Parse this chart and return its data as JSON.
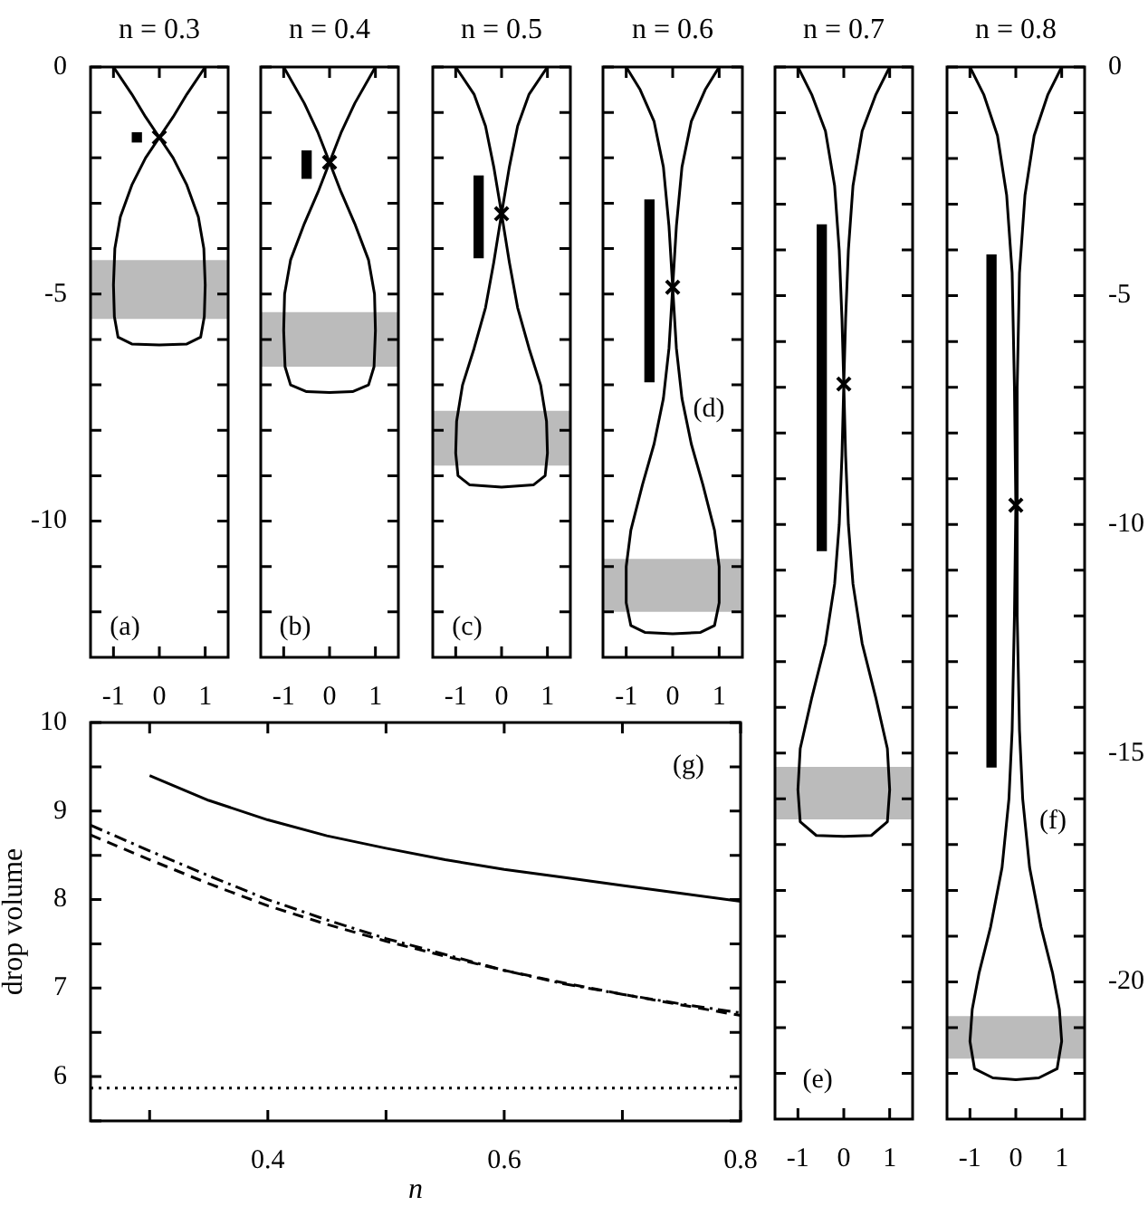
{
  "chart_data": [
    {
      "type": "line",
      "title": "n = 0.3",
      "xlim": [
        -1.5,
        1.5
      ],
      "xticks": [
        -1,
        0,
        1
      ],
      "ylim": [
        -13,
        0
      ],
      "yticks": [
        0,
        {
          "value": -1,
          "label": null
        },
        {
          "value": -2,
          "label": null
        },
        {
          "value": -3,
          "label": null
        },
        {
          "value": -4,
          "label": null
        },
        -5,
        {
          "value": -6,
          "label": null
        },
        {
          "value": -7,
          "label": null
        },
        {
          "value": -8,
          "label": null
        },
        {
          "value": -9,
          "label": null
        },
        -10,
        {
          "value": -11,
          "label": null
        },
        {
          "value": -12,
          "label": null
        }
      ],
      "series": [
        {
          "type": "line",
          "color": "#000000",
          "x": [
            -1,
            -0.6,
            -0.3,
            0,
            0.3,
            0.6,
            0.85,
            0.97,
            1.0,
            0.98,
            0.9,
            0.6,
            0,
            -0.6,
            -0.9,
            -0.98,
            -1.0,
            -0.97,
            -0.85,
            -0.6,
            -0.3,
            0,
            0.3,
            0.6,
            1
          ],
          "values": [
            0,
            -0.6,
            -1.1,
            -1.55,
            -2.0,
            -2.6,
            -3.3,
            -4.0,
            -4.8,
            -5.5,
            -5.95,
            -6.1,
            -6.12,
            -6.1,
            -5.95,
            -5.5,
            -4.8,
            -4.0,
            -3.3,
            -2.6,
            -2.0,
            -1.55,
            -1.1,
            -0.6,
            0
          ]
        },
        {
          "type": "bar",
          "color": "#000000",
          "x": [
            -0.49
          ],
          "base": [
            -1.65
          ],
          "values": [
            0.2
          ]
        },
        {
          "type": "scatter",
          "color": "#000000",
          "marker": "cross",
          "x": [
            0
          ],
          "values": [
            -1.55
          ]
        }
      ],
      "bands": [
        {
          "axis": "y",
          "from": -5.55,
          "to": -4.25,
          "color": "#bbbbbb"
        }
      ],
      "annotations": [
        "(a)"
      ]
    },
    {
      "type": "line",
      "title": "n = 0.4",
      "xlim": [
        -1.5,
        1.5
      ],
      "xticks": [
        -1,
        0,
        1
      ],
      "ylim": [
        -13,
        0
      ],
      "tick_labels": "x",
      "yticks": [
        0,
        {
          "value": -1,
          "label": null
        },
        {
          "value": -2,
          "label": null
        },
        {
          "value": -3,
          "label": null
        },
        {
          "value": -4,
          "label": null
        },
        {
          "value": -5,
          "label": null
        },
        {
          "value": -6,
          "label": null
        },
        {
          "value": -7,
          "label": null
        },
        {
          "value": -8,
          "label": null
        },
        {
          "value": -9,
          "label": null
        },
        {
          "value": -10,
          "label": null
        },
        {
          "value": -11,
          "label": null
        },
        {
          "value": -12,
          "label": null
        }
      ],
      "series": [
        {
          "type": "line",
          "color": "#000000",
          "x": [
            -1,
            -0.55,
            -0.25,
            0,
            0.25,
            0.55,
            0.85,
            0.98,
            1.0,
            0.97,
            0.85,
            0.5,
            0,
            -0.5,
            -0.85,
            -0.97,
            -1.0,
            -0.98,
            -0.85,
            -0.55,
            -0.25,
            0,
            0.25,
            0.55,
            1
          ],
          "values": [
            0,
            -0.8,
            -1.45,
            -2.1,
            -2.75,
            -3.45,
            -4.25,
            -5.0,
            -5.8,
            -6.6,
            -7.0,
            -7.15,
            -7.17,
            -7.15,
            -7.0,
            -6.6,
            -5.8,
            -5.0,
            -4.25,
            -3.45,
            -2.75,
            -2.1,
            -1.45,
            -0.8,
            0
          ]
        },
        {
          "type": "bar",
          "color": "#000000",
          "x": [
            -0.5
          ],
          "base": [
            -2.45
          ],
          "values": [
            0.6
          ]
        },
        {
          "type": "scatter",
          "color": "#000000",
          "marker": "cross",
          "x": [
            0
          ],
          "values": [
            -2.1
          ]
        }
      ],
      "bands": [
        {
          "axis": "y",
          "from": -6.6,
          "to": -5.4,
          "color": "#bbbbbb"
        }
      ],
      "annotations": [
        "(b)"
      ]
    },
    {
      "type": "line",
      "title": "n = 0.5",
      "xlim": [
        -1.5,
        1.5
      ],
      "xticks": [
        -1,
        0,
        1
      ],
      "ylim": [
        -13,
        0
      ],
      "tick_labels": "x",
      "yticks": [
        {
          "value": 0,
          "label": null
        },
        {
          "value": -1,
          "label": null
        },
        {
          "value": -2,
          "label": null
        },
        {
          "value": -3,
          "label": null
        },
        {
          "value": -4,
          "label": null
        },
        {
          "value": -5,
          "label": null
        },
        {
          "value": -6,
          "label": null
        },
        {
          "value": -7,
          "label": null
        },
        {
          "value": -8,
          "label": null
        },
        {
          "value": -9,
          "label": null
        },
        {
          "value": -10,
          "label": null
        },
        {
          "value": -11,
          "label": null
        },
        {
          "value": -12,
          "label": null
        }
      ],
      "series": [
        {
          "type": "line",
          "color": "#000000",
          "x": [
            -1,
            -0.6,
            -0.35,
            -0.17,
            0,
            0.17,
            0.35,
            0.6,
            0.85,
            0.98,
            1.0,
            0.95,
            0.7,
            0,
            -0.7,
            -0.95,
            -1.0,
            -0.98,
            -0.85,
            -0.6,
            -0.35,
            -0.17,
            0,
            0.17,
            0.35,
            0.6,
            1
          ],
          "values": [
            0,
            -0.6,
            -1.3,
            -2.2,
            -3.23,
            -4.3,
            -5.3,
            -6.2,
            -7.0,
            -7.8,
            -8.5,
            -9.0,
            -9.2,
            -9.25,
            -9.2,
            -9.0,
            -8.5,
            -7.8,
            -7.0,
            -6.2,
            -5.3,
            -4.3,
            -3.23,
            -2.2,
            -1.3,
            -0.6,
            0
          ]
        },
        {
          "type": "bar",
          "color": "#000000",
          "x": [
            -0.5
          ],
          "base": [
            -4.2
          ],
          "values": [
            1.8
          ]
        },
        {
          "type": "scatter",
          "color": "#000000",
          "marker": "cross",
          "x": [
            0
          ],
          "values": [
            -3.23
          ]
        }
      ],
      "bands": [
        {
          "axis": "y",
          "from": -8.78,
          "to": -7.57,
          "color": "#bbbbbb"
        }
      ],
      "annotations": [
        "(c)"
      ]
    },
    {
      "type": "line",
      "title": "n = 0.6",
      "xlim": [
        -1.5,
        1.5
      ],
      "xticks": [
        -1,
        0,
        1
      ],
      "ylim": [
        -13,
        0
      ],
      "tick_labels": "x",
      "yticks": [
        {
          "value": 0,
          "label": null
        },
        {
          "value": -1,
          "label": null
        },
        {
          "value": -2,
          "label": null
        },
        {
          "value": -3,
          "label": null
        },
        {
          "value": -4,
          "label": null
        },
        {
          "value": -5,
          "label": null
        },
        {
          "value": -6,
          "label": null
        },
        {
          "value": -7,
          "label": null
        },
        {
          "value": -8,
          "label": null
        },
        {
          "value": -9,
          "label": null
        },
        {
          "value": -10,
          "label": null
        },
        {
          "value": -11,
          "label": null
        },
        {
          "value": -12,
          "label": null
        }
      ],
      "series": [
        {
          "type": "line",
          "color": "#000000",
          "x": [
            -1,
            -0.7,
            -0.4,
            -0.2,
            -0.08,
            0,
            0.08,
            0.2,
            0.4,
            0.65,
            0.9,
            1.0,
            1.0,
            0.9,
            0.6,
            0,
            -0.6,
            -0.9,
            -1.0,
            -1.0,
            -0.9,
            -0.65,
            -0.4,
            -0.2,
            -0.08,
            0,
            0.08,
            0.2,
            0.4,
            0.7,
            1
          ],
          "values": [
            0,
            -0.5,
            -1.2,
            -2.2,
            -3.5,
            -4.85,
            -6.2,
            -7.3,
            -8.3,
            -9.2,
            -10.2,
            -11.0,
            -11.8,
            -12.3,
            -12.45,
            -12.48,
            -12.45,
            -12.3,
            -11.8,
            -11.0,
            -10.2,
            -9.2,
            -8.3,
            -7.3,
            -6.2,
            -4.85,
            -3.5,
            -2.2,
            -1.2,
            -0.5,
            0
          ]
        },
        {
          "type": "bar",
          "color": "#000000",
          "x": [
            -0.5
          ],
          "base": [
            -6.93
          ],
          "values": [
            4.0
          ]
        },
        {
          "type": "scatter",
          "color": "#000000",
          "marker": "cross",
          "x": [
            0
          ],
          "values": [
            -4.85
          ]
        }
      ],
      "bands": [
        {
          "axis": "y",
          "from": -12.0,
          "to": -10.83,
          "color": "#bbbbbb"
        }
      ],
      "annotations": [
        "(d)"
      ]
    },
    {
      "type": "line",
      "title": "n = 0.7",
      "xlim": [
        -1.5,
        1.5
      ],
      "xticks": [
        -1,
        0,
        1
      ],
      "y2lim": [
        -23,
        0
      ],
      "tick_labels": "x",
      "y2ticks": [
        {
          "value": 0,
          "label": null
        },
        {
          "value": -1,
          "label": null
        },
        {
          "value": -2,
          "label": null
        },
        {
          "value": -3,
          "label": null
        },
        {
          "value": -4,
          "label": null
        },
        {
          "value": -5,
          "label": null
        },
        {
          "value": -6,
          "label": null
        },
        {
          "value": -7,
          "label": null
        },
        {
          "value": -8,
          "label": null
        },
        {
          "value": -9,
          "label": null
        },
        {
          "value": -10,
          "label": null
        },
        {
          "value": -11,
          "label": null
        },
        {
          "value": -12,
          "label": null
        },
        {
          "value": -13,
          "label": null
        },
        {
          "value": -14,
          "label": null
        },
        {
          "value": -15,
          "label": null
        },
        {
          "value": -16,
          "label": null
        },
        {
          "value": -17,
          "label": null
        },
        {
          "value": -18,
          "label": null
        },
        {
          "value": -19,
          "label": null
        },
        {
          "value": -20,
          "label": null
        },
        {
          "value": -21,
          "label": null
        },
        {
          "value": -22,
          "label": null
        }
      ],
      "series": [
        {
          "type": "line",
          "color": "#000000",
          "axis": "y2",
          "x": [
            -1,
            -0.7,
            -0.4,
            -0.2,
            -0.1,
            -0.04,
            0,
            0.04,
            0.1,
            0.2,
            0.4,
            0.7,
            0.95,
            1.0,
            0.95,
            0.6,
            0,
            -0.6,
            -0.95,
            -1.0,
            -0.95,
            -0.7,
            -0.4,
            -0.2,
            -0.1,
            -0.04,
            0,
            0.04,
            0.1,
            0.2,
            0.4,
            0.7,
            1
          ],
          "values": [
            0,
            -0.6,
            -1.4,
            -2.6,
            -4.0,
            -5.5,
            -6.93,
            -8.5,
            -10.0,
            -11.3,
            -12.6,
            -13.8,
            -14.9,
            -15.8,
            -16.5,
            -16.8,
            -16.82,
            -16.8,
            -16.5,
            -15.8,
            -14.9,
            -13.8,
            -12.6,
            -11.3,
            -10.0,
            -8.5,
            -6.93,
            -5.5,
            -4.0,
            -2.6,
            -1.4,
            -0.6,
            0
          ]
        },
        {
          "type": "bar",
          "color": "#000000",
          "axis": "y2",
          "x": [
            -0.48
          ],
          "base": [
            -10.57
          ],
          "values": [
            7.12
          ]
        },
        {
          "type": "scatter",
          "color": "#000000",
          "axis": "y2",
          "marker": "cross",
          "x": [
            0
          ],
          "values": [
            -6.93
          ]
        }
      ],
      "bands": [
        {
          "axis": "y2",
          "from": -16.45,
          "to": -15.3,
          "color": "#bbbbbb"
        }
      ],
      "annotations": [
        "(e)"
      ]
    },
    {
      "type": "line",
      "title": "n = 0.8",
      "xlim": [
        -1.5,
        1.5
      ],
      "xticks": [
        -1,
        0,
        1
      ],
      "y2lim": [
        -23,
        0
      ],
      "y2ticks": [
        0,
        {
          "value": -1,
          "label": null
        },
        {
          "value": -2,
          "label": null
        },
        {
          "value": -3,
          "label": null
        },
        {
          "value": -4,
          "label": null
        },
        -5,
        {
          "value": -6,
          "label": null
        },
        {
          "value": -7,
          "label": null
        },
        {
          "value": -8,
          "label": null
        },
        {
          "value": -9,
          "label": null
        },
        -10,
        {
          "value": -11,
          "label": null
        },
        {
          "value": -12,
          "label": null
        },
        {
          "value": -13,
          "label": null
        },
        {
          "value": -14,
          "label": null
        },
        -15,
        {
          "value": -16,
          "label": null
        },
        {
          "value": -17,
          "label": null
        },
        {
          "value": -18,
          "label": null
        },
        {
          "value": -19,
          "label": null
        },
        -20,
        {
          "value": -21,
          "label": null
        },
        {
          "value": -22,
          "label": null
        }
      ],
      "series": [
        {
          "type": "line",
          "color": "#000000",
          "axis": "y2",
          "x": [
            -1,
            -0.7,
            -0.4,
            -0.2,
            -0.08,
            -0.03,
            0,
            0.03,
            0.08,
            0.15,
            0.3,
            0.55,
            0.8,
            0.95,
            1.0,
            0.9,
            0.5,
            0,
            -0.5,
            -0.9,
            -1.0,
            -0.95,
            -0.8,
            -0.55,
            -0.3,
            -0.15,
            -0.08,
            -0.03,
            0,
            0.03,
            0.08,
            0.2,
            0.4,
            0.7,
            1
          ],
          "values": [
            0,
            -0.6,
            -1.5,
            -2.8,
            -4.5,
            -7.0,
            -9.58,
            -12.0,
            -14.5,
            -16.0,
            -17.5,
            -18.8,
            -19.8,
            -20.6,
            -21.3,
            -21.9,
            -22.1,
            -22.14,
            -22.1,
            -21.9,
            -21.3,
            -20.6,
            -19.8,
            -18.8,
            -17.5,
            -16.0,
            -14.5,
            -12.0,
            -9.58,
            -7.0,
            -4.5,
            -2.8,
            -1.5,
            -0.6,
            0
          ]
        },
        {
          "type": "bar",
          "color": "#000000",
          "axis": "y2",
          "x": [
            -0.53
          ],
          "base": [
            -15.3
          ],
          "values": [
            11.19
          ]
        },
        {
          "type": "scatter",
          "color": "#000000",
          "axis": "y2",
          "marker": "cross",
          "x": [
            0
          ],
          "values": [
            -9.58
          ]
        }
      ],
      "bands": [
        {
          "axis": "y2",
          "from": -21.68,
          "to": -20.75,
          "color": "#bbbbbb"
        }
      ],
      "annotations": [
        "(f)"
      ]
    },
    {
      "type": "line",
      "xlabel": "n",
      "ylabel": "drop volume",
      "xlim": [
        0.25,
        0.8
      ],
      "xticks": [
        {
          "value": 0.3,
          "label": null
        },
        0.4,
        {
          "value": 0.5,
          "label": null
        },
        0.6,
        {
          "value": 0.7,
          "label": null
        },
        0.8
      ],
      "ylim": [
        5.5,
        10
      ],
      "yticks": [
        {
          "value": 5.5,
          "label": null
        },
        6,
        {
          "value": 6.5,
          "label": null
        },
        7,
        {
          "value": 7.5,
          "label": null
        },
        8,
        {
          "value": 8.5,
          "label": null
        },
        9,
        {
          "value": 9.5,
          "label": null
        },
        10
      ],
      "series": [
        {
          "type": "line",
          "color": "#000000",
          "line_style": "solid",
          "x": [
            0.3,
            0.35,
            0.4,
            0.45,
            0.5,
            0.55,
            0.6,
            0.65,
            0.7,
            0.75,
            0.8
          ],
          "values": [
            9.4,
            9.12,
            8.9,
            8.72,
            8.58,
            8.45,
            8.34,
            8.25,
            8.16,
            8.07,
            7.98
          ]
        },
        {
          "type": "line",
          "color": "#000000",
          "line_style": "dashdot",
          "x": [
            0.25,
            0.3,
            0.35,
            0.4,
            0.45,
            0.5,
            0.55,
            0.6,
            0.65,
            0.7,
            0.75,
            0.8
          ],
          "values": [
            8.84,
            8.55,
            8.27,
            8.0,
            7.77,
            7.56,
            7.38,
            7.2,
            7.05,
            6.93,
            6.82,
            6.72
          ]
        },
        {
          "type": "line",
          "color": "#000000",
          "line_style": "dashed",
          "x": [
            0.25,
            0.3,
            0.35,
            0.4,
            0.45,
            0.5,
            0.55,
            0.6,
            0.65,
            0.7,
            0.75,
            0.8
          ],
          "values": [
            8.73,
            8.45,
            8.18,
            7.93,
            7.72,
            7.53,
            7.36,
            7.2,
            7.06,
            6.93,
            6.81,
            6.69
          ]
        },
        {
          "type": "line",
          "color": "#000000",
          "line_style": "dotted",
          "x": [
            0.25,
            0.8
          ],
          "values": [
            5.87,
            5.87
          ]
        }
      ],
      "annotations": [
        "(g)"
      ]
    }
  ]
}
